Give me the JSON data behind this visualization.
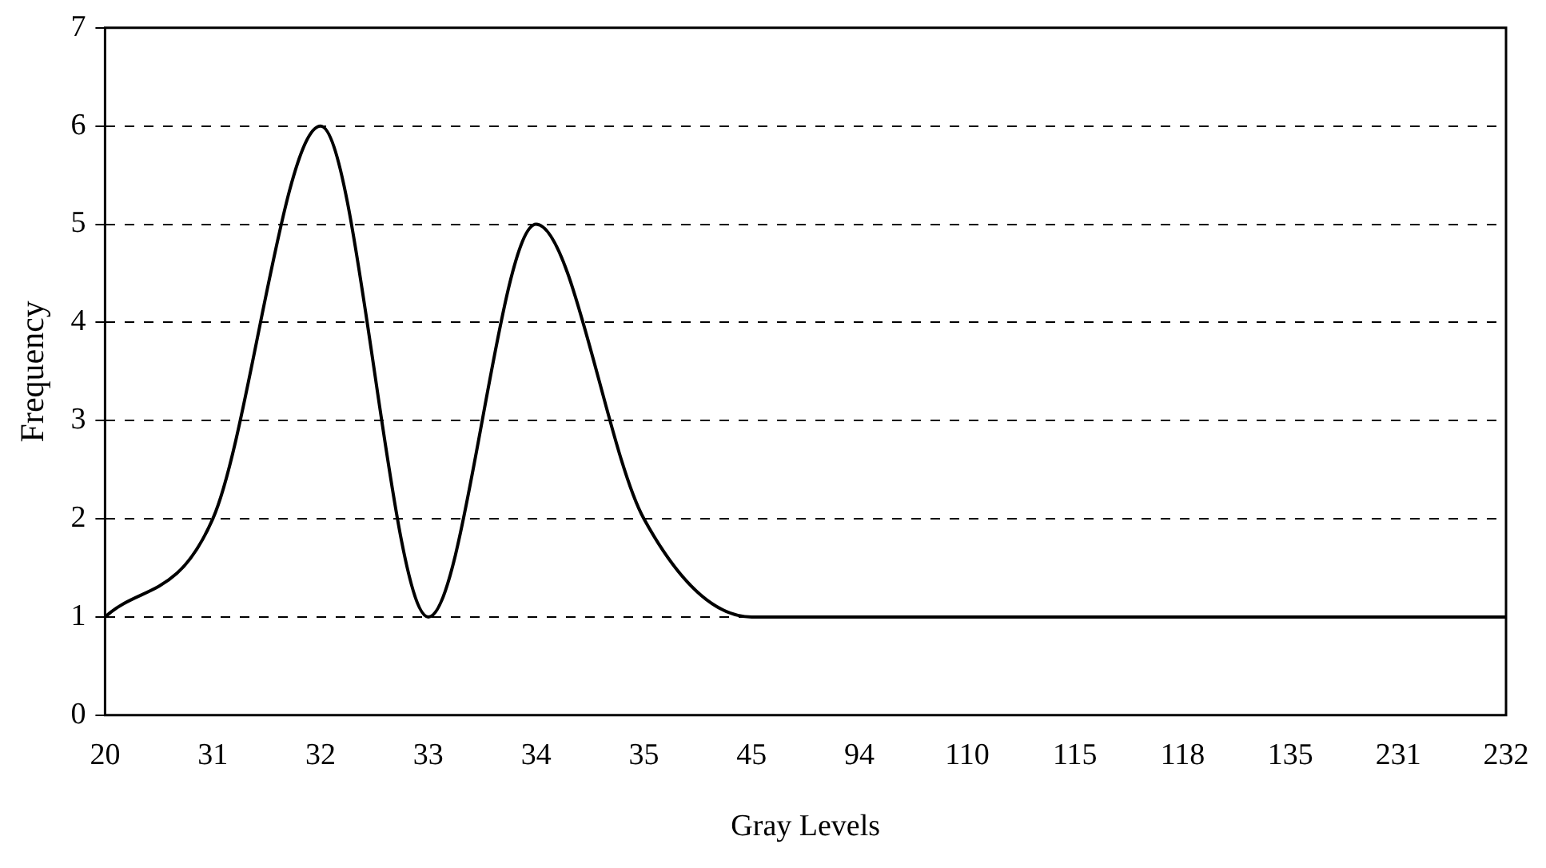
{
  "chart_data": {
    "type": "line",
    "xlabel": "Gray Levels",
    "ylabel": "Frequency",
    "categories": [
      "20",
      "31",
      "32",
      "33",
      "34",
      "35",
      "45",
      "94",
      "110",
      "115",
      "118",
      "135",
      "231",
      "232"
    ],
    "series": [
      {
        "color": "#000000",
        "values": [
          1,
          2,
          6,
          1,
          5,
          2,
          1,
          1,
          1,
          1,
          1,
          1,
          1,
          1
        ]
      }
    ],
    "ylim": [
      0,
      7
    ],
    "yticks": [
      0,
      1,
      2,
      3,
      4,
      5,
      6,
      7
    ],
    "grid": "y",
    "legend": false,
    "marker": "none",
    "line_style": "solid"
  }
}
